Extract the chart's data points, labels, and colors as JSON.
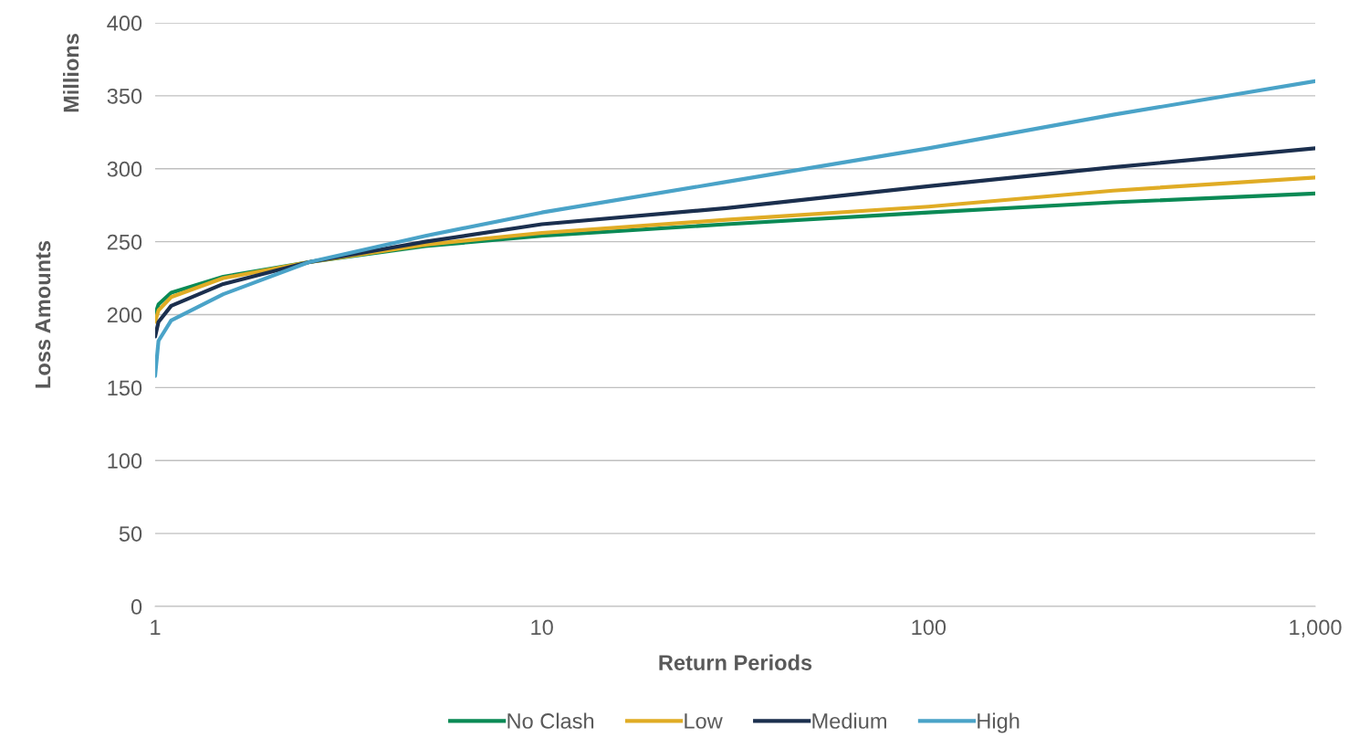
{
  "chart_data": {
    "type": "line",
    "xlabel": "Return Periods",
    "ylabel": "Loss Amounts",
    "annotations": [
      "Millions"
    ],
    "log": "x",
    "xlim": [
      1,
      1000
    ],
    "xticks": [
      1,
      10,
      100,
      {
        "value": 1000,
        "label": "1,000"
      }
    ],
    "ylim": [
      0,
      400
    ],
    "yticks": [
      0,
      50,
      100,
      150,
      200,
      250,
      300,
      350,
      400
    ],
    "grid": "y",
    "legend": "bottom",
    "marker": "none",
    "line_style": "solid",
    "x": [
      1,
      1.02,
      1.1,
      1.5,
      2.5,
      5,
      10,
      30,
      100,
      300,
      1000
    ],
    "series": [
      {
        "name": "No Clash",
        "color": "#0a8a55",
        "values": [
          200,
          207,
          215,
          226,
          236,
          247,
          254,
          262,
          270,
          277,
          283
        ]
      },
      {
        "name": "Low",
        "color": "#e0ac25",
        "values": [
          195,
          203,
          212,
          225,
          236,
          248,
          256,
          265,
          274,
          285,
          294
        ]
      },
      {
        "name": "Medium",
        "color": "#1b2f4e",
        "values": [
          185,
          195,
          206,
          221,
          236,
          250,
          262,
          273,
          288,
          301,
          314
        ]
      },
      {
        "name": "High",
        "color": "#4aa3c8",
        "values": [
          158,
          182,
          196,
          214,
          236,
          254,
          270,
          291,
          314,
          337,
          360
        ]
      }
    ]
  }
}
